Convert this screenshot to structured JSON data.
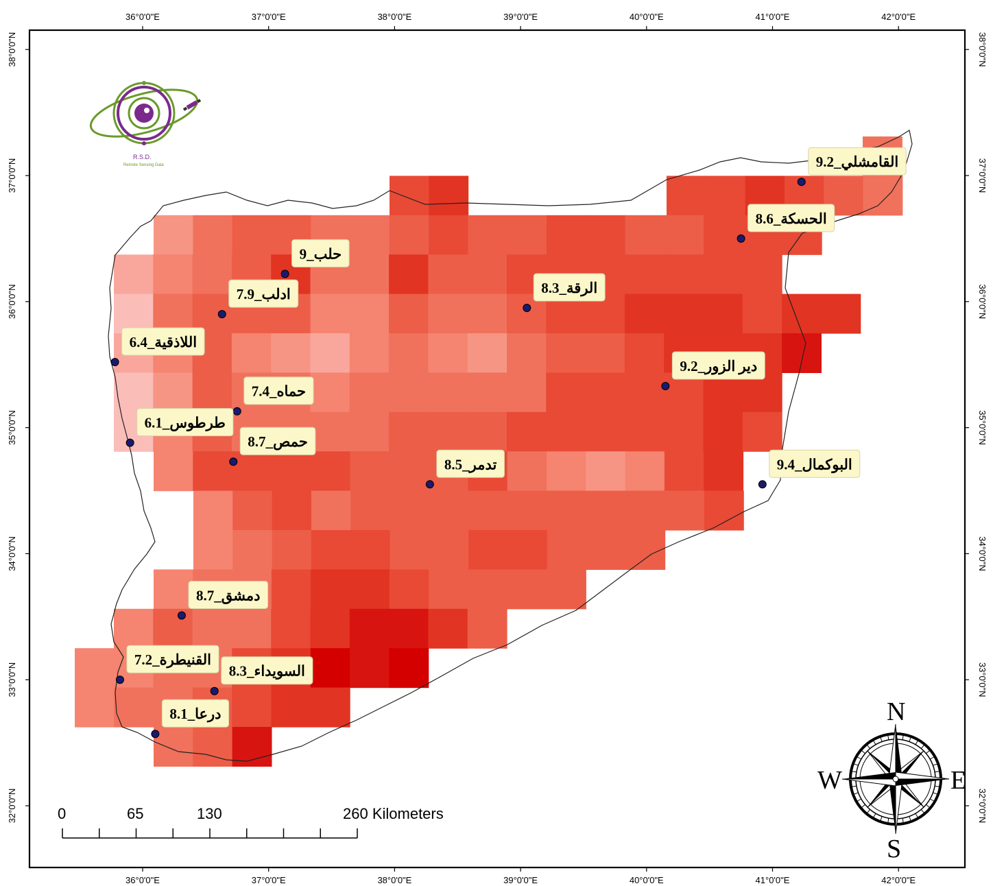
{
  "map": {
    "lon_ticks": [
      "36°0'0\"E",
      "37°0'0\"E",
      "38°0'0\"E",
      "39°0'0\"E",
      "40°0'0\"E",
      "41°0'0\"E",
      "42°0'0\"E"
    ],
    "lat_ticks": [
      "38°0'0\"N",
      "37°0'0\"N",
      "36°0'0\"N",
      "35°0'0\"N",
      "34°0'0\"N",
      "33°0'0\"N",
      "32°0'0\"N"
    ],
    "colors": {
      "ramp_low": "#fdd0d0",
      "ramp_mid": "#f0725c",
      "ramp_high": "#d40000",
      "label_bg": "#fbf7c9",
      "point": "#1a1a6e"
    }
  },
  "logo": {
    "title": "R.S.D.",
    "subtitle": "Remote Sensing Data"
  },
  "cities": [
    {
      "label": "القامشلي_9.2",
      "value": 9.2,
      "lon": 41.23,
      "lat": 36.95
    },
    {
      "label": "الحسكة_8.6",
      "value": 8.6,
      "lon": 40.75,
      "lat": 36.5
    },
    {
      "label": "حلب_9",
      "value": 9,
      "lon": 37.13,
      "lat": 36.22
    },
    {
      "label": "الرقة_8.3",
      "value": 8.3,
      "lon": 39.05,
      "lat": 35.95
    },
    {
      "label": "ادلب_7.9",
      "value": 7.9,
      "lon": 36.63,
      "lat": 35.9
    },
    {
      "label": "اللاذقية_6.4",
      "value": 6.4,
      "lon": 35.78,
      "lat": 35.52
    },
    {
      "label": "دير الزور_9.2",
      "value": 9.2,
      "lon": 40.15,
      "lat": 35.33
    },
    {
      "label": "حماه_7.4",
      "value": 7.4,
      "lon": 36.75,
      "lat": 35.13
    },
    {
      "label": "طرطوس_6.1",
      "value": 6.1,
      "lon": 35.9,
      "lat": 34.88
    },
    {
      "label": "حمص_8.7",
      "value": 8.7,
      "lon": 36.72,
      "lat": 34.73
    },
    {
      "label": "تدمر_8.5",
      "value": 8.5,
      "lon": 38.28,
      "lat": 34.55
    },
    {
      "label": "البوكمال_9.4",
      "value": 9.4,
      "lon": 40.92,
      "lat": 34.55
    },
    {
      "label": "دمشق_8.7",
      "value": 8.7,
      "lon": 36.31,
      "lat": 33.51
    },
    {
      "label": "القنيطرة_7.2",
      "value": 7.2,
      "lon": 35.82,
      "lat": 33.0
    },
    {
      "label": "السويداء_8.3",
      "value": 8.3,
      "lon": 36.57,
      "lat": 32.91
    },
    {
      "label": "درعا_8.1",
      "value": 8.1,
      "lon": 36.1,
      "lat": 32.57
    }
  ],
  "scale_bar": {
    "labels": [
      "0",
      "65",
      "130",
      "260 Kilometers"
    ]
  },
  "compass": {
    "n": "N",
    "s": "S",
    "e": "E",
    "w": "W"
  }
}
